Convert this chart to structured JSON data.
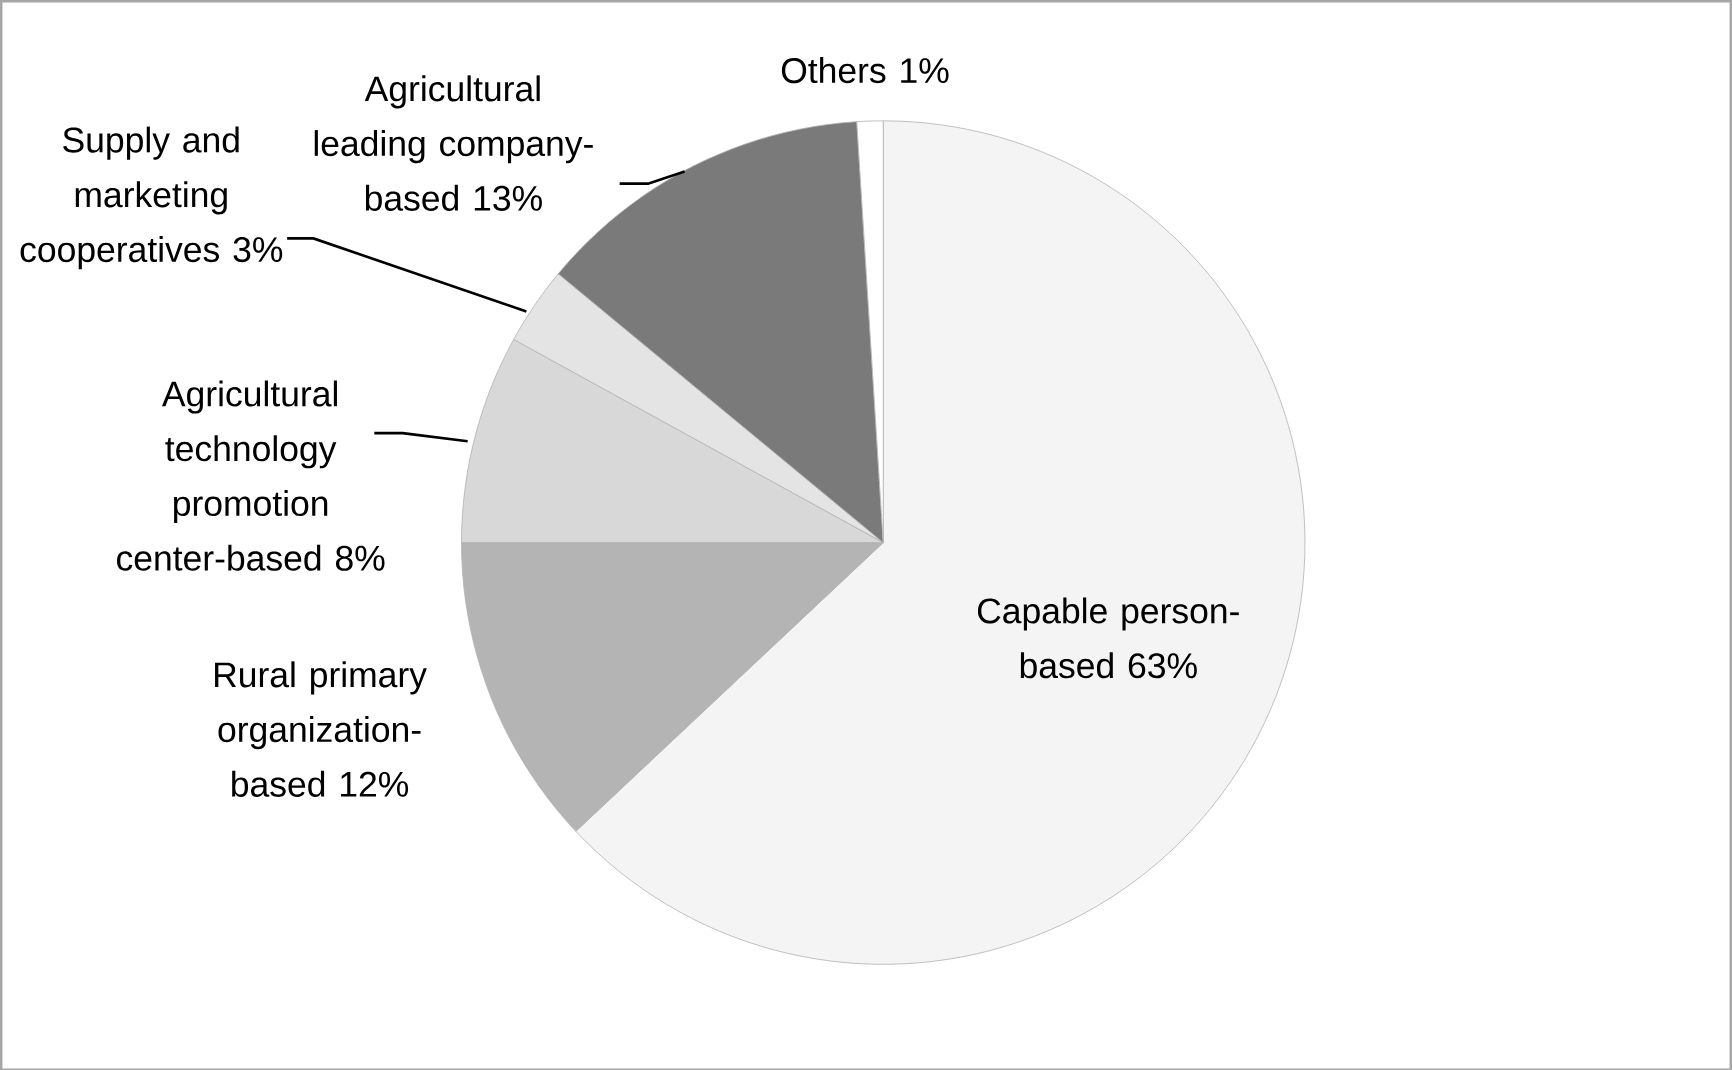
{
  "chart_data": {
    "type": "pie",
    "categories": [
      "Capable person-based",
      "Rural primary organization-based",
      "Agricultural technology promotion center-based",
      "Supply and marketing cooperatives",
      "Agricultural leading company-based",
      "Others"
    ],
    "values": [
      63,
      12,
      8,
      3,
      13,
      1
    ],
    "value_labels": [
      "63%",
      "12%",
      "8%",
      "3%",
      "13%",
      "1%"
    ],
    "colors": [
      "#f4f4f4",
      "#b4b4b4",
      "#d8d8d8",
      "#e4e4e4",
      "#7a7a7a",
      "#ffffff"
    ]
  }
}
